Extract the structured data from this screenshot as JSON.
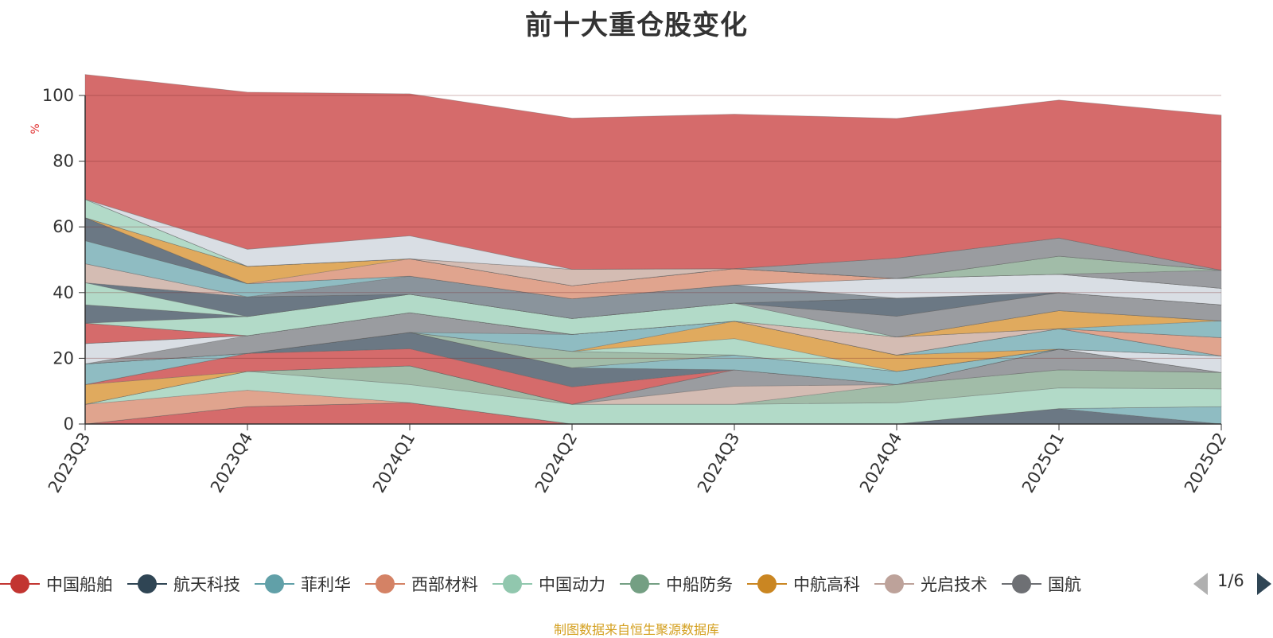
{
  "chart_data": {
    "type": "area",
    "stacked": true,
    "title": "前十大重仓股变化",
    "ylabel": "%",
    "ylim": [
      0,
      100
    ],
    "yticks": [
      "0",
      "20",
      "40",
      "60",
      "80",
      "100"
    ],
    "categories": [
      "2023Q3",
      "2023Q4",
      "2024Q1",
      "2024Q2",
      "2024Q3",
      "2024Q4",
      "2025Q1",
      "2025Q2"
    ],
    "series": [
      {
        "name": "",
        "color": "#d56b6b",
        "values": [
          0,
          5.3,
          6.5,
          0,
          0,
          0,
          0,
          0
        ]
      },
      {
        "name": "",
        "color": "#6b7884",
        "values": [
          0,
          0,
          0,
          0,
          0,
          0,
          4.7,
          0
        ]
      },
      {
        "name": "",
        "color": "#8fbcc2",
        "values": [
          0,
          0,
          0,
          0,
          0,
          0,
          0,
          5.3
        ]
      },
      {
        "name": "",
        "color": "#e0a48e",
        "values": [
          6,
          5,
          0,
          0,
          0,
          0,
          0,
          0
        ]
      },
      {
        "name": "",
        "color": "#b2dac8",
        "values": [
          0,
          5.7,
          5.5,
          6,
          6,
          6.5,
          6.3,
          5.4
        ]
      },
      {
        "name": "",
        "color": "#a1bca8",
        "values": [
          0,
          0,
          5.7,
          0,
          0,
          5.5,
          5.5,
          5
        ]
      },
      {
        "name": "",
        "color": "#d4bcb3",
        "values": [
          0,
          0,
          0,
          0,
          5.5,
          0,
          0,
          0
        ]
      },
      {
        "name": "",
        "color": "#9a9ca0",
        "values": [
          0,
          0,
          0,
          0,
          5,
          0,
          6.3,
          0
        ]
      },
      {
        "name": "",
        "color": "#e0aa5e",
        "values": [
          6,
          0,
          0,
          0,
          0,
          0,
          0,
          0
        ]
      },
      {
        "name": "",
        "color": "#d56b6b",
        "values": [
          0,
          5.5,
          5.2,
          5.3,
          0,
          0,
          0,
          0
        ]
      },
      {
        "name": "",
        "color": "#6b7884",
        "values": [
          0,
          0,
          5,
          5.8,
          0,
          0,
          0,
          0
        ]
      },
      {
        "name": "",
        "color": "#8fbcc2",
        "values": [
          6.3,
          0,
          0,
          0,
          4.5,
          4,
          0,
          0
        ]
      },
      {
        "name": "",
        "color": "#d9dee4",
        "values": [
          0,
          0,
          0,
          0,
          0,
          0,
          0,
          5
        ]
      },
      {
        "name": "",
        "color": "#a1bca8",
        "values": [
          0,
          0,
          0,
          5,
          0,
          0,
          0,
          0
        ]
      },
      {
        "name": "",
        "color": "#b2dac8",
        "values": [
          0,
          0,
          0,
          0,
          5,
          0,
          0,
          0
        ]
      },
      {
        "name": "",
        "color": "#e0aa5e",
        "values": [
          0,
          0,
          0,
          0,
          5.3,
          5,
          0,
          0
        ]
      },
      {
        "name": "",
        "color": "#8fbcc2",
        "values": [
          0,
          0,
          0,
          5.2,
          0,
          0,
          6.2,
          0
        ]
      },
      {
        "name": "",
        "color": "#9a9ca0",
        "values": [
          0,
          5.4,
          6,
          0,
          0,
          0,
          0,
          0
        ]
      },
      {
        "name": "",
        "color": "#d9dee4",
        "values": [
          6.2,
          0,
          0,
          0,
          0,
          0,
          0,
          0
        ]
      },
      {
        "name": "",
        "color": "#e0a48e",
        "values": [
          0,
          0,
          0,
          0,
          0,
          0,
          0,
          5.6
        ]
      },
      {
        "name": "",
        "color": "#d4bcb3",
        "values": [
          0,
          0,
          0,
          0,
          0,
          5.5,
          0,
          0
        ]
      },
      {
        "name": "",
        "color": "#d56b6b",
        "values": [
          6.2,
          0,
          0,
          0,
          0,
          0,
          0,
          0
        ]
      },
      {
        "name": "",
        "color": "#8fbcc2",
        "values": [
          0,
          0,
          0,
          0,
          0,
          0,
          0,
          5.1
        ]
      },
      {
        "name": "",
        "color": "#e0aa5e",
        "values": [
          0,
          0,
          0,
          0,
          0,
          0,
          5.5,
          0
        ]
      },
      {
        "name": "",
        "color": "#b2dac8",
        "values": [
          0,
          5.8,
          5.6,
          4.8,
          5.5,
          0,
          0,
          0
        ]
      },
      {
        "name": "",
        "color": "#6b7884",
        "values": [
          5.6,
          0,
          0,
          0,
          0,
          0,
          0,
          0
        ]
      },
      {
        "name": "",
        "color": "#9a9ca0",
        "values": [
          0,
          0,
          0,
          0,
          0,
          6.3,
          5.5,
          4.9
        ]
      },
      {
        "name": "",
        "color": "#b2dac8",
        "values": [
          6.7,
          0,
          0,
          0,
          0,
          0,
          0,
          0
        ]
      },
      {
        "name": "",
        "color": "#6b7884",
        "values": [
          0,
          6,
          0,
          0,
          0,
          5.5,
          0,
          0
        ]
      },
      {
        "name": "",
        "color": "#d4bcb3",
        "values": [
          5.8,
          0,
          0,
          0,
          0,
          0,
          0,
          0
        ]
      },
      {
        "name": "",
        "color": "#8a949c",
        "values": [
          0,
          0,
          5.5,
          6,
          5.5,
          0,
          0,
          0
        ]
      },
      {
        "name": "",
        "color": "#8fbcc2",
        "values": [
          7,
          4,
          0,
          0,
          0,
          0,
          0,
          0
        ]
      },
      {
        "name": "",
        "color": "#d9dee4",
        "values": [
          0,
          0,
          0,
          0,
          0,
          6,
          5.6,
          5
        ]
      },
      {
        "name": "",
        "color": "#6b7884",
        "values": [
          7,
          0,
          0,
          0,
          0,
          0,
          0,
          0
        ]
      },
      {
        "name": "",
        "color": "#e0a48e",
        "values": [
          0,
          0,
          5.3,
          4,
          5,
          0,
          0,
          0
        ]
      },
      {
        "name": "",
        "color": "#e0aa5e",
        "values": [
          0,
          5.3,
          0,
          0,
          0,
          0,
          0,
          0
        ]
      },
      {
        "name": "",
        "color": "#9a9ca0",
        "values": [
          0,
          0,
          0,
          0,
          0,
          0,
          0,
          5.5
        ]
      },
      {
        "name": "",
        "color": "#a1bca8",
        "values": [
          0,
          0,
          0,
          0,
          0,
          0,
          5.5,
          0
        ]
      },
      {
        "name": "",
        "color": "#b2dac8",
        "values": [
          5.6,
          0,
          0,
          0,
          0,
          0,
          0,
          0
        ]
      },
      {
        "name": "",
        "color": "#d4bcb3",
        "values": [
          0,
          0,
          0,
          5,
          0,
          0,
          0,
          0
        ]
      },
      {
        "name": "",
        "color": "#9a9ca0",
        "values": [
          0,
          0,
          0,
          0,
          0,
          6.2,
          5.5,
          0
        ]
      },
      {
        "name": "",
        "color": "#d9dee4",
        "values": [
          0,
          5.2,
          7,
          0,
          0,
          0,
          0,
          0
        ]
      },
      {
        "name": "",
        "color": "#d56b6b",
        "values": [
          38,
          47.8,
          43.2,
          46,
          47,
          42.5,
          42,
          47.2
        ]
      }
    ]
  },
  "legend": {
    "items": [
      {
        "label": "中国船舶",
        "color": "#c23531"
      },
      {
        "label": "航天科技",
        "color": "#2f4554"
      },
      {
        "label": "菲利华",
        "color": "#61a0a8"
      },
      {
        "label": "西部材料",
        "color": "#d48265"
      },
      {
        "label": "中国动力",
        "color": "#91c7ae"
      },
      {
        "label": "中船防务",
        "color": "#749f83"
      },
      {
        "label": "中航高科",
        "color": "#ca8622"
      },
      {
        "label": "光启技术",
        "color": "#bda29a"
      },
      {
        "label": "国航",
        "color": "#6e7074"
      }
    ],
    "page": "1/6"
  },
  "source_note": "制图数据来自恒生聚源数据库"
}
